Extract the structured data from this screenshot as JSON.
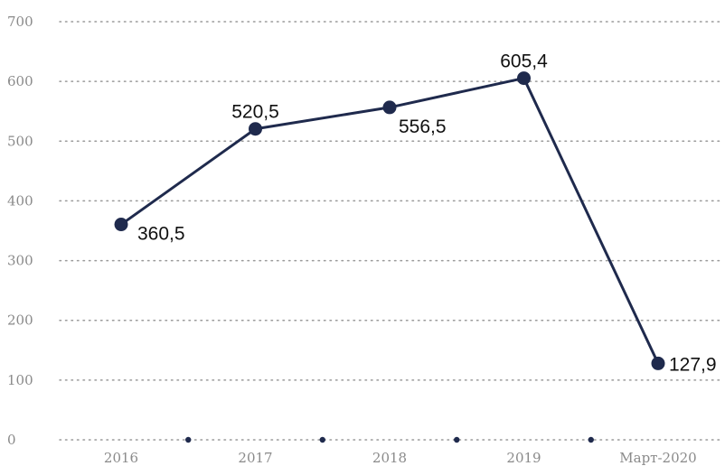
{
  "chart_data": {
    "type": "line",
    "categories": [
      "2016",
      "2017",
      "2018",
      "2019",
      "Март-2020"
    ],
    "series": [
      {
        "values": [
          360.5,
          520.5,
          556.5,
          605.4,
          127.9
        ]
      }
    ],
    "data_labels": [
      "360,5",
      "520,5",
      "556,5",
      "605,4",
      "127,9"
    ],
    "yticks": [
      "0",
      "100",
      "200",
      "300",
      "400",
      "500",
      "600",
      "700"
    ],
    "ylim": [
      0,
      700
    ],
    "grid": true,
    "grid_style": "dotted",
    "legend": "none",
    "colors": {
      "series": "#1f2a4d",
      "grid": "#9a9a9a",
      "tick_text": "#8a8a8a",
      "label_text": "#111111"
    }
  }
}
